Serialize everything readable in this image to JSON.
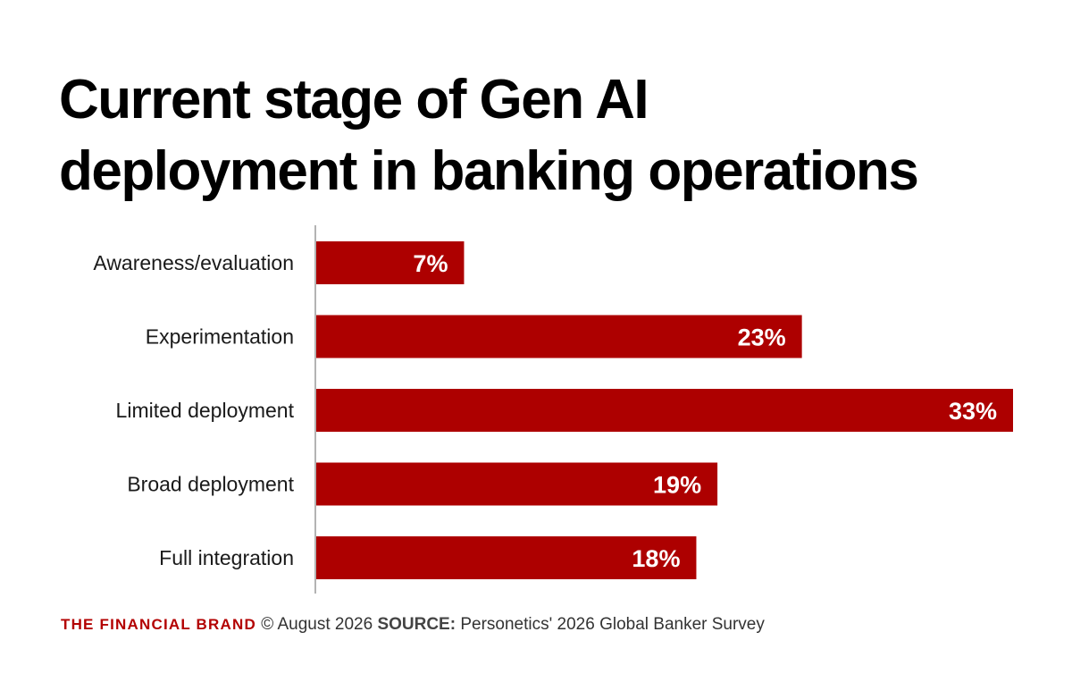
{
  "title_lines": [
    "Current stage of Gen AI",
    "deployment in banking operations"
  ],
  "footer": {
    "brand": "THE FINANCIAL BRAND",
    "copyright": "© August 2026",
    "source_label": "SOURCE:",
    "source_text": "Personetics' 2026 Global Banker Survey"
  },
  "colors": {
    "bar": "#ad0000",
    "axis": "#b3b3b3",
    "brand": "#b30000"
  },
  "chart_data": {
    "type": "bar",
    "orientation": "horizontal",
    "title": "Current stage of Gen AI deployment in banking operations",
    "categories": [
      "Awareness/evaluation",
      "Experimentation",
      "Limited deployment",
      "Broad deployment",
      "Full integration"
    ],
    "values": [
      7,
      23,
      33,
      19,
      18
    ],
    "value_labels": [
      "7%",
      "23%",
      "33%",
      "19%",
      "18%"
    ],
    "unit": "%",
    "xlim": [
      0,
      33
    ],
    "grid": false,
    "legend": "none"
  }
}
